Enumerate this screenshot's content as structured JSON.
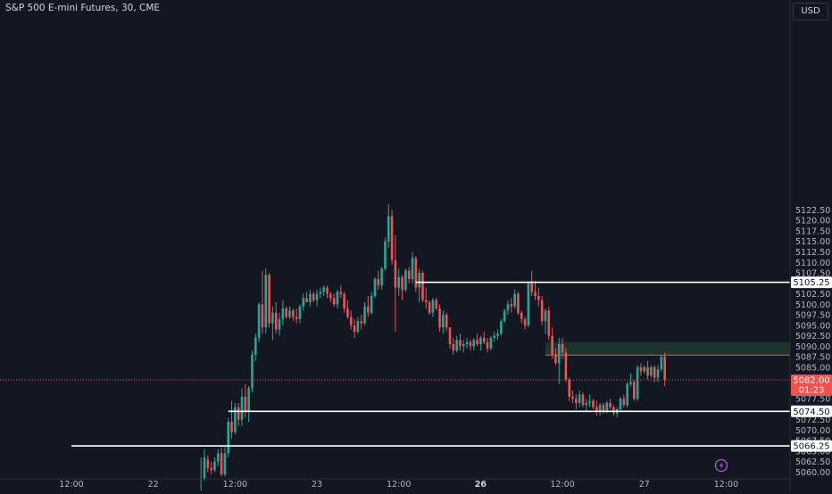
{
  "header": {
    "symbol": "S&P 500 E-mini Futures, 30, CME",
    "currency": "USD"
  },
  "colors": {
    "background": "#131722",
    "bull": "#26a69a",
    "bear": "#ef5350",
    "level_line": "#ffffff",
    "zone": "#1e3a2e",
    "last_price": "#ef5350"
  },
  "icons": {
    "lightning": "lightning-icon"
  },
  "chart_data": {
    "type": "candlestick",
    "title": "S&P 500 E-mini Futures, 30, CME",
    "ylim": [
      5059,
      5125
    ],
    "y_ticks": [
      "5060.00",
      "5062.50",
      "5065.00",
      "5067.50",
      "5070.00",
      "5072.50",
      "5075.00",
      "5077.50",
      "5080.00",
      "5082.50",
      "5085.00",
      "5087.50",
      "5090.00",
      "5092.50",
      "5095.00",
      "5097.50",
      "5100.00",
      "5102.50",
      "5105.00",
      "5107.50",
      "5110.00",
      "5112.50",
      "5115.00",
      "5117.50",
      "5120.00",
      "5122.50"
    ],
    "x_ticks": [
      {
        "label": "12:00",
        "bar": 0,
        "bold": false
      },
      {
        "label": "22",
        "bar": 24,
        "bold": false
      },
      {
        "label": "12:00",
        "bar": 48,
        "bold": false
      },
      {
        "label": "23",
        "bar": 72,
        "bold": false
      },
      {
        "label": "12:00",
        "bar": 96,
        "bold": false
      },
      {
        "label": "26",
        "bar": 120,
        "bold": true
      },
      {
        "label": "12:00",
        "bar": 144,
        "bold": false
      },
      {
        "label": "27",
        "bar": 168,
        "bold": false
      },
      {
        "label": "12:00",
        "bar": 192,
        "bold": false
      }
    ],
    "bar_count": 204,
    "candles": [
      [
        38,
        5058.5,
        5063.5,
        5055.5,
        5058.5
      ],
      [
        39,
        5058.5,
        5065.5,
        5058.0,
        5063.5
      ],
      [
        40,
        5063.0,
        5064.0,
        5060.0,
        5061.0
      ],
      [
        41,
        5061.0,
        5062.5,
        5059.5,
        5060.5
      ],
      [
        42,
        5060.5,
        5063.5,
        5060.0,
        5062.5
      ],
      [
        43,
        5062.5,
        5065.5,
        5061.5,
        5064.5
      ],
      [
        44,
        5064.5,
        5066.0,
        5059.0,
        5059.5
      ],
      [
        45,
        5059.5,
        5066.0,
        5059.0,
        5064.5
      ],
      [
        46,
        5064.5,
        5073.0,
        5063.5,
        5072.0
      ],
      [
        47,
        5072.0,
        5077.0,
        5068.0,
        5069.5
      ],
      [
        48,
        5069.5,
        5076.5,
        5069.0,
        5075.5
      ],
      [
        49,
        5075.5,
        5076.5,
        5071.0,
        5072.5
      ],
      [
        50,
        5072.5,
        5080.0,
        5071.0,
        5078.0
      ],
      [
        51,
        5078.0,
        5081.0,
        5073.0,
        5074.5
      ],
      [
        52,
        5074.5,
        5080.5,
        5072.0,
        5080.0
      ],
      [
        53,
        5080.0,
        5089.0,
        5079.0,
        5088.0
      ],
      [
        54,
        5088.0,
        5093.0,
        5086.5,
        5092.0
      ],
      [
        55,
        5092.0,
        5100.5,
        5091.0,
        5100.0
      ],
      [
        56,
        5100.0,
        5108.0,
        5093.0,
        5094.5
      ],
      [
        57,
        5094.5,
        5108.5,
        5093.0,
        5107.0
      ],
      [
        58,
        5107.0,
        5107.5,
        5094.5,
        5095.5
      ],
      [
        59,
        5095.5,
        5099.5,
        5091.5,
        5098.0
      ],
      [
        60,
        5098.0,
        5100.5,
        5093.0,
        5094.0
      ],
      [
        61,
        5094.0,
        5098.0,
        5092.5,
        5096.5
      ],
      [
        62,
        5096.5,
        5101.0,
        5095.0,
        5099.0
      ],
      [
        63,
        5099.0,
        5099.5,
        5096.5,
        5097.0
      ],
      [
        64,
        5097.0,
        5099.5,
        5096.5,
        5098.5
      ],
      [
        65,
        5098.5,
        5099.0,
        5096.0,
        5097.0
      ],
      [
        66,
        5097.0,
        5099.0,
        5095.5,
        5096.5
      ],
      [
        67,
        5096.5,
        5100.0,
        5095.5,
        5099.5
      ],
      [
        68,
        5099.5,
        5102.5,
        5098.5,
        5101.5
      ],
      [
        69,
        5101.5,
        5103.0,
        5100.5,
        5100.5
      ],
      [
        70,
        5100.5,
        5103.5,
        5099.5,
        5102.5
      ],
      [
        71,
        5102.5,
        5103.0,
        5100.5,
        5101.0
      ],
      [
        72,
        5101.0,
        5103.5,
        5099.5,
        5102.5
      ],
      [
        73,
        5102.5,
        5104.0,
        5101.5,
        5103.0
      ],
      [
        74,
        5103.0,
        5104.5,
        5102.0,
        5104.0
      ],
      [
        75,
        5104.0,
        5104.5,
        5101.5,
        5102.5
      ],
      [
        76,
        5102.5,
        5103.0,
        5100.5,
        5101.5
      ],
      [
        77,
        5101.5,
        5102.5,
        5099.5,
        5100.0
      ],
      [
        78,
        5100.0,
        5103.5,
        5099.0,
        5103.0
      ],
      [
        79,
        5103.0,
        5104.5,
        5101.5,
        5102.5
      ],
      [
        80,
        5102.5,
        5103.0,
        5098.0,
        5099.0
      ],
      [
        81,
        5099.0,
        5101.0,
        5096.5,
        5097.0
      ],
      [
        82,
        5097.0,
        5098.5,
        5094.0,
        5095.0
      ],
      [
        83,
        5095.0,
        5096.5,
        5092.0,
        5093.5
      ],
      [
        84,
        5093.5,
        5097.0,
        5093.0,
        5096.0
      ],
      [
        85,
        5096.0,
        5097.5,
        5094.0,
        5095.5
      ],
      [
        86,
        5095.5,
        5100.5,
        5095.0,
        5099.5
      ],
      [
        87,
        5099.5,
        5102.0,
        5097.0,
        5098.0
      ],
      [
        88,
        5098.0,
        5103.0,
        5097.5,
        5102.0
      ],
      [
        89,
        5102.0,
        5106.5,
        5101.5,
        5106.0
      ],
      [
        90,
        5106.0,
        5108.0,
        5103.5,
        5104.5
      ],
      [
        91,
        5104.5,
        5109.0,
        5103.5,
        5108.5
      ],
      [
        92,
        5108.5,
        5116.0,
        5108.0,
        5115.0
      ],
      [
        93,
        5115.0,
        5124.0,
        5113.5,
        5121.0
      ],
      [
        94,
        5121.0,
        5122.5,
        5109.5,
        5110.5
      ],
      [
        95,
        5110.5,
        5116.5,
        5093.5,
        5104.0
      ],
      [
        96,
        5104.0,
        5108.5,
        5102.0,
        5106.5
      ],
      [
        97,
        5106.5,
        5107.0,
        5101.0,
        5103.5
      ],
      [
        98,
        5103.5,
        5108.5,
        5103.0,
        5108.0
      ],
      [
        99,
        5108.0,
        5109.0,
        5105.0,
        5106.0
      ],
      [
        100,
        5106.0,
        5112.5,
        5105.0,
        5111.0
      ],
      [
        101,
        5111.0,
        5111.5,
        5103.0,
        5104.0
      ],
      [
        102,
        5104.0,
        5108.5,
        5100.5,
        5107.5
      ],
      [
        103,
        5107.5,
        5108.0,
        5100.5,
        5101.0
      ],
      [
        104,
        5101.0,
        5104.0,
        5099.0,
        5100.5
      ],
      [
        105,
        5100.5,
        5101.0,
        5097.5,
        5098.0
      ],
      [
        106,
        5098.0,
        5101.5,
        5097.0,
        5101.0
      ],
      [
        107,
        5101.0,
        5101.5,
        5098.5,
        5099.0
      ],
      [
        108,
        5099.0,
        5100.0,
        5093.5,
        5094.5
      ],
      [
        109,
        5094.5,
        5098.5,
        5093.0,
        5097.5
      ],
      [
        110,
        5097.5,
        5098.0,
        5093.5,
        5094.5
      ],
      [
        111,
        5094.5,
        5094.5,
        5089.5,
        5090.5
      ],
      [
        112,
        5090.5,
        5092.0,
        5088.0,
        5089.0
      ],
      [
        113,
        5089.0,
        5092.5,
        5088.5,
        5091.5
      ],
      [
        114,
        5091.5,
        5093.0,
        5089.0,
        5090.0
      ],
      [
        115,
        5090.0,
        5091.5,
        5088.5,
        5090.5
      ],
      [
        116,
        5090.5,
        5092.0,
        5089.5,
        5091.0
      ],
      [
        117,
        5091.0,
        5091.5,
        5089.0,
        5090.0
      ],
      [
        118,
        5090.0,
        5092.0,
        5089.0,
        5091.5
      ],
      [
        119,
        5091.5,
        5093.0,
        5090.0,
        5090.5
      ],
      [
        120,
        5090.5,
        5092.5,
        5089.0,
        5092.0
      ],
      [
        121,
        5092.0,
        5093.5,
        5090.5,
        5091.0
      ],
      [
        122,
        5091.0,
        5092.0,
        5088.5,
        5089.5
      ],
      [
        123,
        5089.5,
        5092.5,
        5089.0,
        5092.0
      ],
      [
        124,
        5092.0,
        5093.5,
        5091.0,
        5092.5
      ],
      [
        125,
        5092.5,
        5094.0,
        5091.5,
        5093.0
      ],
      [
        126,
        5093.0,
        5096.5,
        5092.5,
        5096.0
      ],
      [
        127,
        5096.0,
        5099.0,
        5095.5,
        5098.5
      ],
      [
        128,
        5098.5,
        5101.0,
        5097.5,
        5100.0
      ],
      [
        129,
        5100.0,
        5101.5,
        5098.0,
        5099.5
      ],
      [
        130,
        5099.5,
        5103.5,
        5099.0,
        5102.5
      ],
      [
        131,
        5102.5,
        5103.0,
        5097.5,
        5098.0
      ],
      [
        132,
        5098.0,
        5098.5,
        5095.5,
        5096.5
      ],
      [
        133,
        5096.5,
        5097.0,
        5094.0,
        5095.0
      ],
      [
        134,
        5095.0,
        5105.5,
        5094.5,
        5105.0
      ],
      [
        135,
        5105.0,
        5108.0,
        5102.0,
        5103.0
      ],
      [
        136,
        5103.0,
        5105.5,
        5101.0,
        5102.0
      ],
      [
        137,
        5102.0,
        5104.0,
        5099.5,
        5101.0
      ],
      [
        138,
        5101.0,
        5102.0,
        5095.0,
        5096.0
      ],
      [
        139,
        5096.0,
        5099.0,
        5093.0,
        5098.5
      ],
      [
        140,
        5098.5,
        5099.5,
        5091.5,
        5092.5
      ],
      [
        141,
        5092.5,
        5094.5,
        5087.0,
        5088.0
      ],
      [
        142,
        5088.0,
        5089.5,
        5085.5,
        5086.0
      ],
      [
        143,
        5086.0,
        5092.0,
        5081.0,
        5090.5
      ],
      [
        144,
        5090.5,
        5092.0,
        5087.0,
        5088.5
      ],
      [
        145,
        5088.5,
        5089.5,
        5081.5,
        5082.0
      ],
      [
        146,
        5082.0,
        5082.5,
        5077.0,
        5078.0
      ],
      [
        147,
        5078.0,
        5079.5,
        5076.5,
        5077.5
      ],
      [
        148,
        5077.5,
        5078.5,
        5075.0,
        5076.5
      ],
      [
        149,
        5076.5,
        5079.5,
        5075.5,
        5078.5
      ],
      [
        150,
        5078.5,
        5079.0,
        5075.5,
        5076.0
      ],
      [
        151,
        5076.0,
        5077.5,
        5074.5,
        5076.5
      ],
      [
        152,
        5076.5,
        5078.5,
        5075.5,
        5077.0
      ],
      [
        153,
        5077.0,
        5077.5,
        5075.0,
        5075.5
      ],
      [
        154,
        5075.5,
        5077.0,
        5073.5,
        5074.5
      ],
      [
        155,
        5074.5,
        5076.5,
        5073.5,
        5076.0
      ],
      [
        156,
        5076.0,
        5076.5,
        5074.0,
        5074.5
      ],
      [
        157,
        5074.5,
        5077.0,
        5074.0,
        5076.5
      ],
      [
        158,
        5076.5,
        5077.5,
        5075.0,
        5075.5
      ],
      [
        159,
        5075.5,
        5076.0,
        5073.5,
        5074.0
      ],
      [
        160,
        5074.0,
        5075.5,
        5073.0,
        5075.0
      ],
      [
        161,
        5075.0,
        5078.0,
        5074.5,
        5077.5
      ],
      [
        162,
        5077.5,
        5078.5,
        5075.5,
        5076.0
      ],
      [
        163,
        5076.0,
        5081.5,
        5075.5,
        5081.0
      ],
      [
        164,
        5081.0,
        5083.5,
        5080.5,
        5081.5
      ],
      [
        165,
        5081.5,
        5082.0,
        5077.0,
        5077.5
      ],
      [
        166,
        5077.5,
        5085.5,
        5077.0,
        5085.0
      ],
      [
        167,
        5085.0,
        5086.0,
        5083.0,
        5084.0
      ],
      [
        168,
        5084.0,
        5085.5,
        5083.5,
        5085.0
      ],
      [
        169,
        5085.0,
        5086.5,
        5082.0,
        5083.0
      ],
      [
        170,
        5083.0,
        5085.5,
        5082.5,
        5085.0
      ],
      [
        171,
        5085.0,
        5085.5,
        5081.5,
        5082.5
      ],
      [
        172,
        5082.5,
        5085.5,
        5081.5,
        5084.5
      ],
      [
        173,
        5084.5,
        5088.0,
        5084.0,
        5087.5
      ],
      [
        174,
        5087.5,
        5088.5,
        5080.5,
        5082.0
      ]
    ],
    "levels": [
      {
        "label": "5105.25",
        "price": 5105.25,
        "start_bar": 101
      },
      {
        "label": "5074.50",
        "price": 5074.5,
        "start_bar": 46
      },
      {
        "label": "5066.25",
        "price": 5066.25,
        "start_bar": 0
      }
    ],
    "zone": {
      "top": 5091.0,
      "bottom": 5087.9,
      "start_bar": 139
    },
    "last_price": {
      "label": "5082.00",
      "countdown": "01:23",
      "price": 5082.0
    }
  }
}
